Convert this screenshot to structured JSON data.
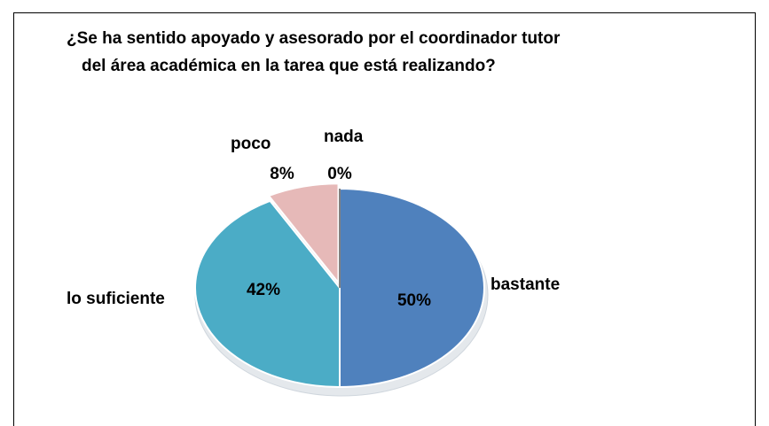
{
  "chart_data": {
    "type": "pie",
    "title": [
      "¿Se ha sentido apoyado y asesorado por el coordinador tutor",
      "del área académica en la tarea que está realizando?"
    ],
    "categories": [
      "bastante",
      "lo suficiente",
      "poco",
      "nada"
    ],
    "values": [
      50,
      42,
      8,
      0
    ],
    "value_labels": [
      "50%",
      "42%",
      "8%",
      "0%"
    ],
    "colors": [
      "#4f81bd",
      "#4bacc6",
      "#e6b9b8",
      "#9bbb59"
    ]
  }
}
